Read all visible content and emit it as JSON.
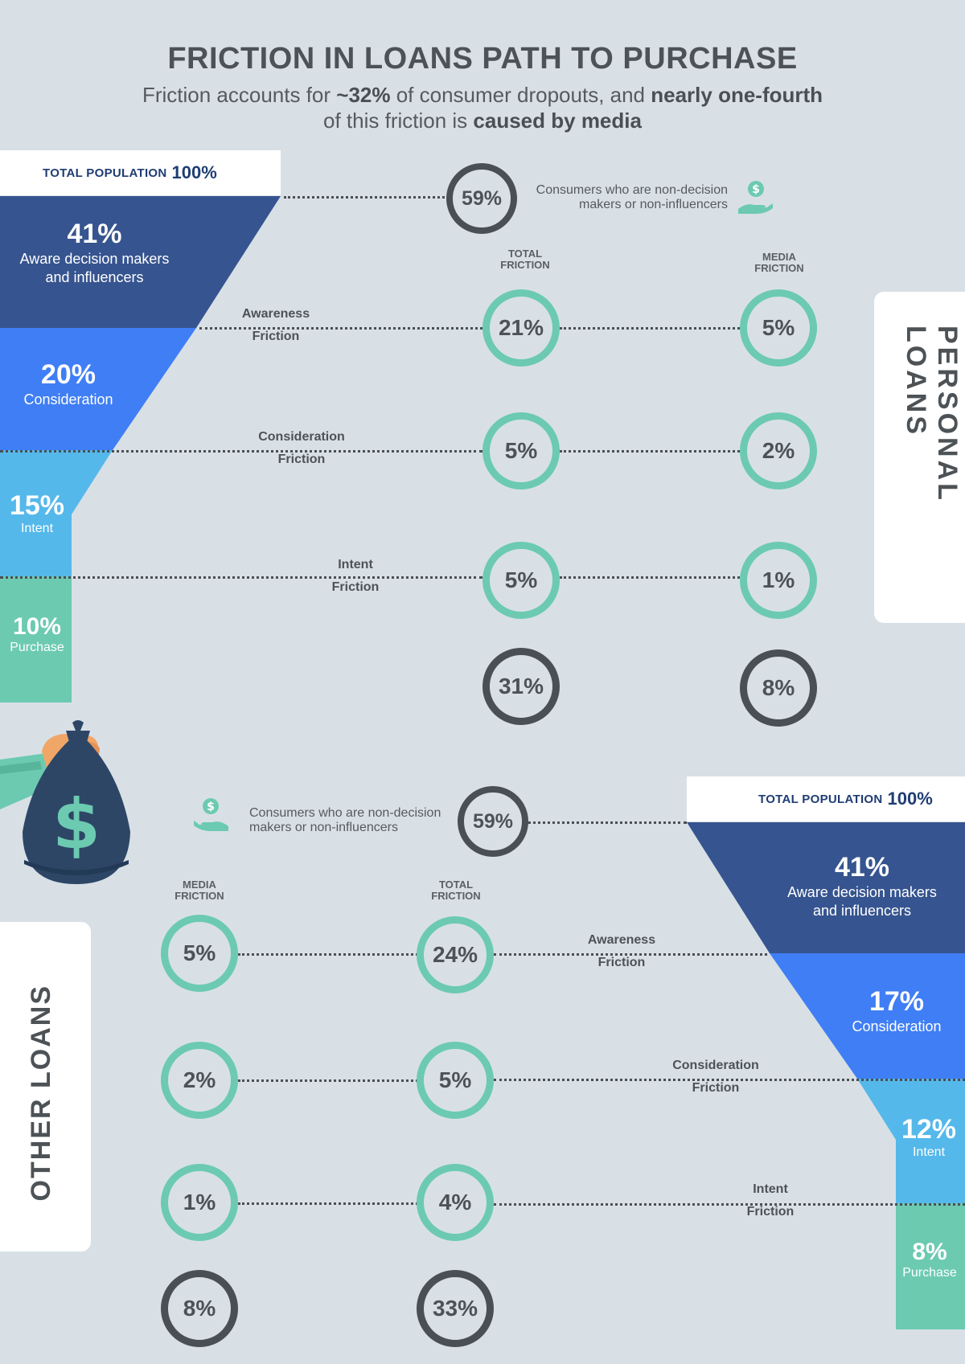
{
  "header": {
    "title": "FRICTION IN LOANS PATH TO PURCHASE",
    "subtitle_pre": "Friction accounts for ",
    "subtitle_bold1": "~32%",
    "subtitle_mid": " of consumer dropouts, and ",
    "subtitle_bold2": "nearly one-fourth",
    "subtitle_line2_pre": "of this friction is ",
    "subtitle_bold3": "caused by media"
  },
  "personal": {
    "section_label": "PERSONAL LOANS",
    "total_population_label": "TOTAL POPULATION",
    "total_population_value": "100%",
    "non_decision_pct": "59%",
    "non_decision_text_1": "Consumers who are non-decision",
    "non_decision_text_2": "makers or non-influencers",
    "col_total_1": "TOTAL",
    "col_total_2": "FRICTION",
    "col_media_1": "MEDIA",
    "col_media_2": "FRICTION",
    "funnel": [
      {
        "pct": "41%",
        "label_1": "Aware decision makers",
        "label_2": "and influencers"
      },
      {
        "pct": "20%",
        "label_1": "Consideration"
      },
      {
        "pct": "15%",
        "label_1": "Intent"
      },
      {
        "pct": "10%",
        "label_1": "Purchase"
      }
    ],
    "frictions": [
      {
        "name_1": "Awareness",
        "name_2": "Friction",
        "total": "21%",
        "media": "5%"
      },
      {
        "name_1": "Consideration",
        "name_2": "Friction",
        "total": "5%",
        "media": "2%"
      },
      {
        "name_1": "Intent",
        "name_2": "Friction",
        "total": "5%",
        "media": "1%"
      }
    ],
    "sum_total": "31%",
    "sum_media": "8%"
  },
  "other": {
    "section_label": "OTHER LOANS",
    "total_population_label": "TOTAL POPULATION",
    "total_population_value": "100%",
    "non_decision_pct": "59%",
    "non_decision_text_1": "Consumers who are non-decision",
    "non_decision_text_2": "makers or non-influencers",
    "col_total_1": "TOTAL",
    "col_total_2": "FRICTION",
    "col_media_1": "MEDIA",
    "col_media_2": "FRICTION",
    "funnel": [
      {
        "pct": "41%",
        "label_1": "Aware decision makers",
        "label_2": "and influencers"
      },
      {
        "pct": "17%",
        "label_1": "Consideration"
      },
      {
        "pct": "12%",
        "label_1": "Intent"
      },
      {
        "pct": "8%",
        "label_1": "Purchase"
      }
    ],
    "frictions": [
      {
        "name_1": "Awareness",
        "name_2": "Friction",
        "total": "24%",
        "media": "5%"
      },
      {
        "name_1": "Consideration",
        "name_2": "Friction",
        "total": "5%",
        "media": "2%"
      },
      {
        "name_1": "Intent",
        "name_2": "Friction",
        "total": "4%",
        "media": "1%"
      }
    ],
    "sum_total": "33%",
    "sum_media": "8%"
  },
  "icons": {
    "money_hand": "hand-with-dollar-coin-icon",
    "money_bag": "money-bag-in-hand-icon"
  },
  "colors": {
    "background": "#d8e0e6",
    "funnel_aware": "#36548f",
    "funnel_consideration": "#3f7ef5",
    "funnel_intent": "#55b8ea",
    "funnel_purchase": "#6ccab1",
    "ring_teal": "#6ccab1",
    "ring_dark": "#4a4f53"
  }
}
